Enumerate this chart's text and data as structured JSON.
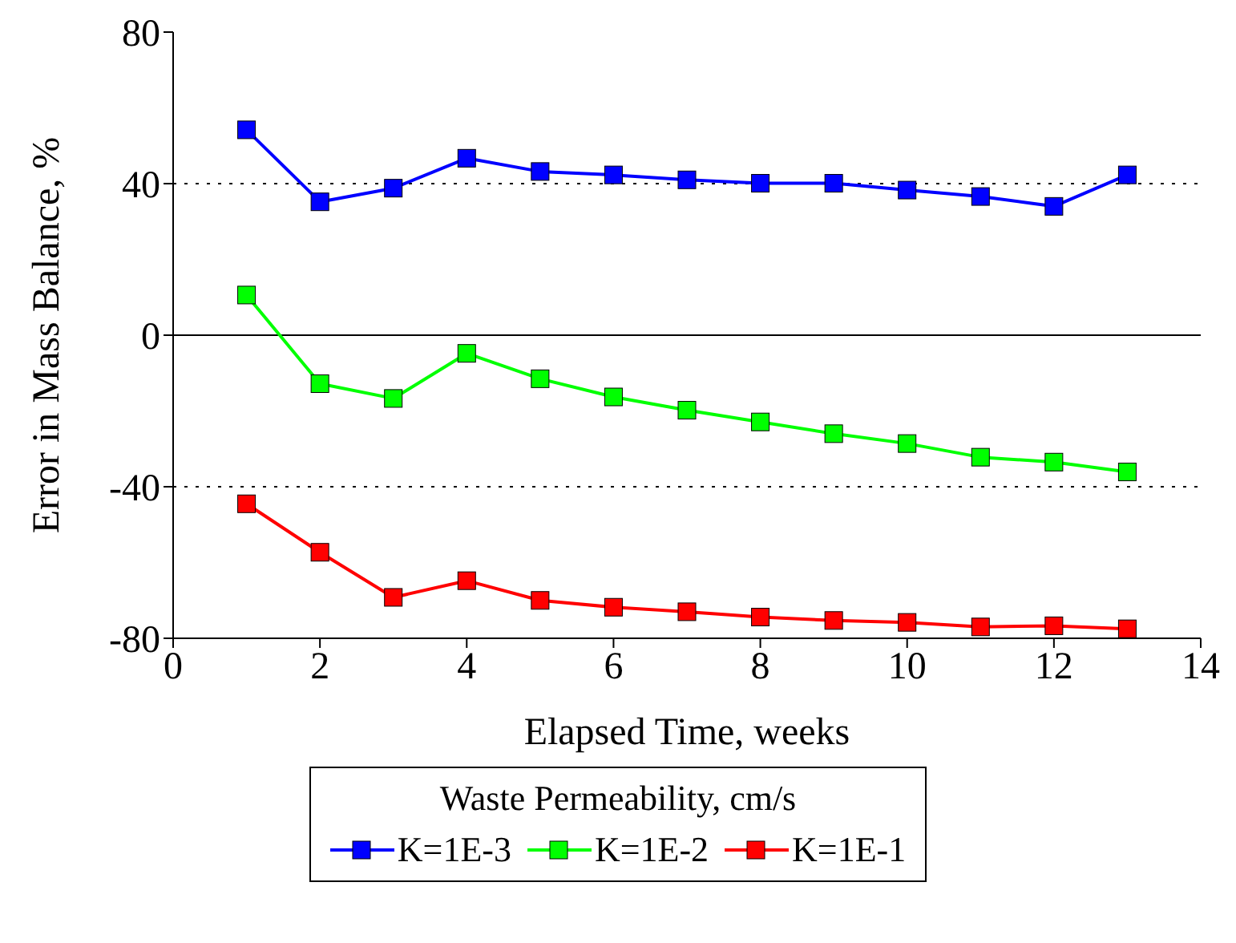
{
  "chart_data": {
    "type": "line",
    "xlabel": "Elapsed Time, weeks",
    "ylabel": "Error in Mass Balance, %",
    "legend_title": "Waste Permeability, cm/s",
    "x": [
      1,
      2,
      3,
      4,
      5,
      6,
      7,
      8,
      9,
      10,
      11,
      12,
      13
    ],
    "series": [
      {
        "name": "K=1E-3",
        "color": "#0000ff",
        "values": [
          54.2,
          35.2,
          38.8,
          46.7,
          43.2,
          42.3,
          41,
          40.1,
          40.1,
          38.3,
          36.6,
          34,
          42.3
        ]
      },
      {
        "name": "K=1E-2",
        "color": "#00ff00",
        "values": [
          10.6,
          -12.8,
          -16.7,
          -4.8,
          -11.5,
          -16.3,
          -19.8,
          -22.9,
          -26,
          -28.6,
          -32.2,
          -33.5,
          -36.1
        ]
      },
      {
        "name": "K=1E-1",
        "color": "#ff0000",
        "values": [
          -44.5,
          -57.3,
          -69.2,
          -64.8,
          -70,
          -71.8,
          -73,
          -74.4,
          -75.3,
          -75.8,
          -77,
          -76.7,
          -77.5
        ]
      }
    ],
    "xlim": [
      0,
      14
    ],
    "xticks": [
      0,
      2,
      4,
      6,
      8,
      10,
      12,
      14
    ],
    "ylim": [
      -80,
      80
    ],
    "yticks": [
      -80,
      -40,
      0,
      40,
      80
    ],
    "ref_lines": [
      {
        "axis": "y",
        "value": 40,
        "line_style": "dotted"
      },
      {
        "axis": "y",
        "value": -40,
        "line_style": "dotted"
      },
      {
        "axis": "y",
        "value": 0,
        "line_style": "solid"
      }
    ],
    "marker": "square",
    "line_style": "solid",
    "legend": "bottom",
    "grid": false
  }
}
